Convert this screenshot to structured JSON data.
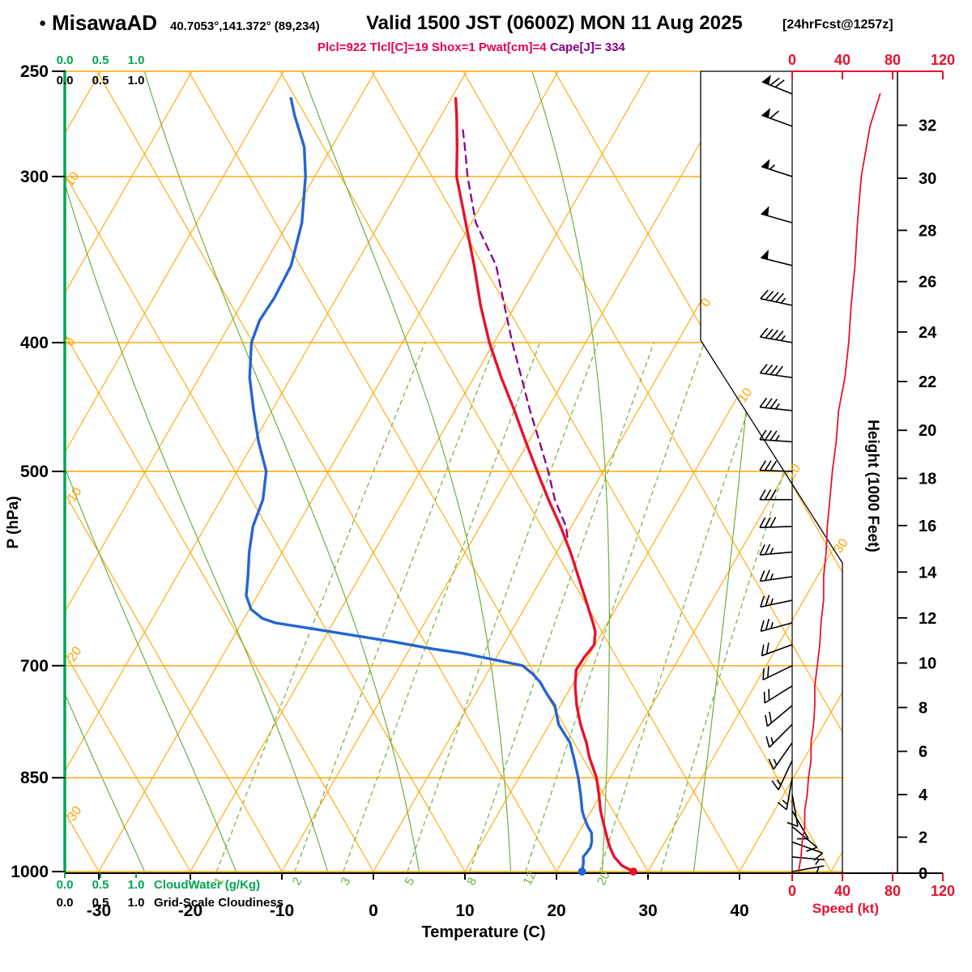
{
  "header": {
    "bullet": "●",
    "station": "MisawaAD",
    "coords": "40.7053°,141.372° (89,234)",
    "valid": "Valid 1500 JST (0600Z) MON 11 Aug 2025",
    "fcst": "[24hrFcst@1257z]",
    "indices_main": "Plcl=922 Tlcl[C]=19 Shox=1 Pwat[cm]=4",
    "indices_cape": "Cape[J]= 334"
  },
  "colors": {
    "temperature": "#e8112d",
    "dewpoint": "#2565d0",
    "parcel": "#8b008b",
    "grid_orange": "#ffa500",
    "grid_green": "#6fae3c",
    "accent_green": "#00a651",
    "barb_black": "#000000",
    "speed_curve": "#e8112d",
    "axis_red": "#e8112d",
    "indices_main": "#e8004c",
    "indices_cape": "#880088"
  },
  "axes": {
    "pressure_label": "P (hPa)",
    "pressure_ticks": [
      250,
      300,
      400,
      500,
      700,
      850,
      1000
    ],
    "temperature_label": "Temperature (C)",
    "temperature_ticks": [
      -30,
      -20,
      -10,
      0,
      10,
      20,
      30,
      40
    ],
    "height_label": "Height (1000 Feet)",
    "height_ticks": [
      0,
      2,
      4,
      6,
      8,
      10,
      12,
      14,
      16,
      18,
      20,
      22,
      24,
      26,
      28,
      30,
      32
    ],
    "speed_label": "Speed (kt)",
    "speed_ticks": [
      0,
      40,
      80,
      120
    ],
    "dry_adiabat_edge_labels": [
      10,
      0,
      -10,
      -20,
      -30
    ],
    "isotherm_edge_labels": [
      0,
      10,
      20,
      30
    ],
    "mixing_ratio_labels": [
      1,
      2,
      3,
      5,
      8,
      12,
      20
    ],
    "cloudwater_scale": [
      "0.0",
      "0.5",
      "1.0"
    ],
    "cloudwater_label": "CloudWater (g/Kg)",
    "cloudiness_scale": [
      "0.0",
      "0.5",
      "1.0"
    ],
    "cloudiness_label": "Grid-Scale Cloudiness"
  },
  "chart_data": {
    "type": "skewt-logp-sounding",
    "y_scale": "log-pressure",
    "pressure_range_hpa": [
      250,
      1000
    ],
    "temperature_axis_range_c": [
      -30,
      40
    ],
    "speed_axis_range_kt": [
      0,
      120
    ],
    "temperature_profile_c": [
      [
        1000,
        28.4
      ],
      [
        990,
        26.8
      ],
      [
        975,
        25.4
      ],
      [
        960,
        24.4
      ],
      [
        950,
        23.8
      ],
      [
        925,
        22.4
      ],
      [
        900,
        21.0
      ],
      [
        875,
        19.8
      ],
      [
        850,
        18.5
      ],
      [
        820,
        16.4
      ],
      [
        800,
        15.2
      ],
      [
        775,
        13.4
      ],
      [
        750,
        11.8
      ],
      [
        725,
        10.4
      ],
      [
        705,
        9.5
      ],
      [
        690,
        9.6
      ],
      [
        675,
        9.9
      ],
      [
        660,
        9.2
      ],
      [
        650,
        8.4
      ],
      [
        625,
        6.2
      ],
      [
        600,
        3.9
      ],
      [
        575,
        1.5
      ],
      [
        550,
        -1.2
      ],
      [
        525,
        -4.2
      ],
      [
        500,
        -7.2
      ],
      [
        475,
        -10.3
      ],
      [
        450,
        -13.5
      ],
      [
        425,
        -17.0
      ],
      [
        400,
        -20.5
      ],
      [
        375,
        -23.8
      ],
      [
        350,
        -27.0
      ],
      [
        325,
        -30.6
      ],
      [
        300,
        -34.5
      ],
      [
        285,
        -36.3
      ],
      [
        270,
        -38.3
      ],
      [
        262,
        -39.5
      ]
    ],
    "dewpoint_profile_c": [
      [
        1000,
        22.8
      ],
      [
        985,
        22.4
      ],
      [
        975,
        22.0
      ],
      [
        960,
        22.2
      ],
      [
        950,
        22.0
      ],
      [
        935,
        21.4
      ],
      [
        925,
        20.6
      ],
      [
        910,
        19.6
      ],
      [
        900,
        19.0
      ],
      [
        875,
        17.8
      ],
      [
        850,
        16.5
      ],
      [
        825,
        15.0
      ],
      [
        800,
        13.4
      ],
      [
        775,
        11.0
      ],
      [
        750,
        9.4
      ],
      [
        735,
        7.8
      ],
      [
        720,
        6.3
      ],
      [
        710,
        5.0
      ],
      [
        700,
        3.4
      ],
      [
        695,
        1.0
      ],
      [
        690,
        -1.5
      ],
      [
        685,
        -4.0
      ],
      [
        680,
        -7.5
      ],
      [
        672,
        -12.0
      ],
      [
        665,
        -16.5
      ],
      [
        658,
        -21.0
      ],
      [
        650,
        -26.3
      ],
      [
        645,
        -28.0
      ],
      [
        635,
        -29.8
      ],
      [
        620,
        -31.2
      ],
      [
        600,
        -32.2
      ],
      [
        575,
        -33.6
      ],
      [
        550,
        -34.8
      ],
      [
        525,
        -35.4
      ],
      [
        500,
        -36.8
      ],
      [
        475,
        -39.5
      ],
      [
        450,
        -42.0
      ],
      [
        425,
        -44.5
      ],
      [
        400,
        -46.5
      ],
      [
        385,
        -47.0
      ],
      [
        370,
        -46.8
      ],
      [
        350,
        -47.0
      ],
      [
        325,
        -48.5
      ],
      [
        300,
        -51.0
      ],
      [
        285,
        -53.0
      ],
      [
        270,
        -56.0
      ],
      [
        262,
        -57.5
      ]
    ],
    "parcel_path_c": [
      [
        560,
        0.2
      ],
      [
        550,
        -0.6
      ],
      [
        525,
        -3.5
      ],
      [
        500,
        -6.0
      ],
      [
        475,
        -8.8
      ],
      [
        450,
        -11.8
      ],
      [
        425,
        -14.8
      ],
      [
        400,
        -18.0
      ],
      [
        375,
        -21.2
      ],
      [
        350,
        -24.6
      ],
      [
        325,
        -29.5
      ],
      [
        300,
        -33.3
      ],
      [
        288,
        -35.0
      ],
      [
        275,
        -37.0
      ]
    ],
    "wind_profile": [
      [
        1000,
        80,
        5
      ],
      [
        975,
        95,
        7
      ],
      [
        950,
        110,
        8
      ],
      [
        925,
        130,
        10
      ],
      [
        900,
        150,
        10
      ],
      [
        875,
        170,
        12
      ],
      [
        850,
        190,
        13
      ],
      [
        825,
        205,
        15
      ],
      [
        800,
        215,
        15
      ],
      [
        775,
        225,
        17
      ],
      [
        750,
        230,
        18
      ],
      [
        725,
        238,
        18
      ],
      [
        700,
        244,
        20
      ],
      [
        675,
        250,
        22
      ],
      [
        650,
        255,
        23
      ],
      [
        625,
        258,
        25
      ],
      [
        600,
        262,
        25
      ],
      [
        575,
        265,
        27
      ],
      [
        550,
        268,
        28
      ],
      [
        525,
        270,
        30
      ],
      [
        500,
        272,
        32
      ],
      [
        475,
        274,
        35
      ],
      [
        450,
        276,
        37
      ],
      [
        425,
        278,
        42
      ],
      [
        400,
        280,
        45
      ],
      [
        375,
        282,
        47
      ],
      [
        350,
        284,
        50
      ],
      [
        325,
        286,
        52
      ],
      [
        300,
        288,
        55
      ],
      [
        275,
        290,
        62
      ],
      [
        260,
        292,
        70
      ]
    ],
    "cloud_water_g_per_kg": [
      [
        1000,
        0
      ],
      [
        250,
        0
      ]
    ],
    "grid_scale_cloudiness": [
      [
        1000,
        0
      ],
      [
        250,
        0
      ]
    ],
    "grid": {
      "isotherms_c": {
        "min": -80,
        "max": 50,
        "step": 10
      },
      "dry_adiabats_c": {
        "min": -30,
        "max": 70,
        "step": 10
      },
      "moist_adiabats_c": [
        -45,
        -35,
        -25,
        -15,
        -5,
        5,
        15,
        25,
        35
      ],
      "mixing_ratio_g_per_kg": [
        1,
        2,
        3,
        5,
        8,
        12,
        20,
        30
      ]
    }
  }
}
